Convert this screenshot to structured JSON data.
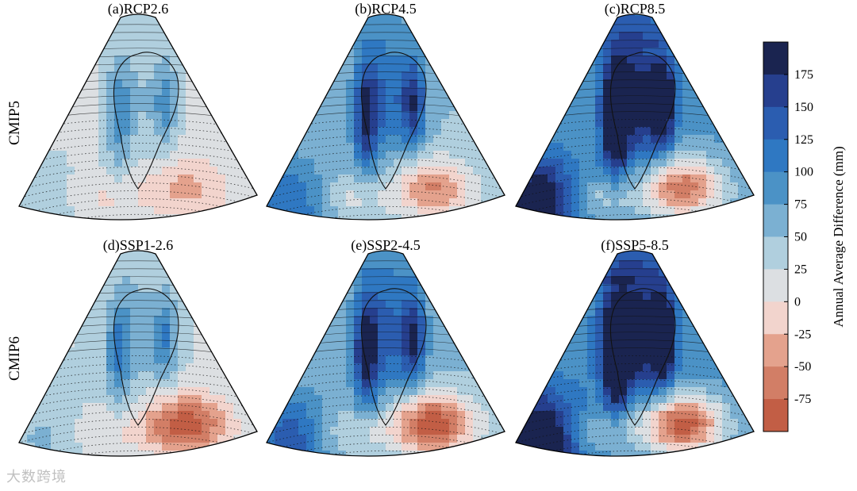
{
  "chart_data": {
    "type": "heatmap",
    "ylabel_colorbar": "Annual Average Difference (mm)",
    "row_labels": [
      "CMIP5",
      "CMIP6"
    ],
    "colorbar": {
      "ticks": [
        175,
        150,
        125,
        100,
        75,
        50,
        25,
        0,
        -25,
        -50,
        -75
      ],
      "range": [
        -100,
        200
      ],
      "step": 25,
      "colors": [
        "#1a2450",
        "#263f8e",
        "#2b5db0",
        "#2f78c2",
        "#4b92c6",
        "#7bb0d2",
        "#b0cfde",
        "#dcdfe2",
        "#f2d4cd",
        "#e4a28d",
        "#d27e66",
        "#c25e45"
      ]
    },
    "panels": [
      {
        "title": "(a)RCP2.6",
        "row": "CMIP5",
        "scenario": "RCP2.6"
      },
      {
        "title": "(b)RCP4.5",
        "row": "CMIP5",
        "scenario": "RCP4.5"
      },
      {
        "title": "(c)RCP8.5",
        "row": "CMIP5",
        "scenario": "RCP8.5"
      },
      {
        "title": "(d)SSP1-2.6",
        "row": "CMIP6",
        "scenario": "SSP1-2.6"
      },
      {
        "title": "(e)SSP2-4.5",
        "row": "CMIP6",
        "scenario": "SSP2-4.5"
      },
      {
        "title": "(f)SSP5-8.5",
        "row": "CMIP6",
        "scenario": "SSP5-8.5"
      }
    ]
  },
  "watermark": "大数跨境"
}
